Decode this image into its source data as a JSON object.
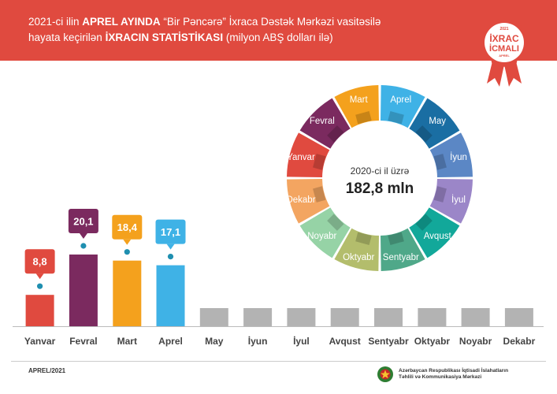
{
  "header": {
    "line1_pre": "2021-ci ilin ",
    "line1_bold": "APREL AYINDA",
    "line1_post": " “Bir Pəncərə” İxraca Dəstək Mərkəzi vasitəsilə",
    "line2_pre": "hayata keçirilən ",
    "line2_bold": "İXRACIN STATİSTİKASI",
    "line2_post": " (milyon ABŞ dolları ilə)"
  },
  "badge": {
    "year_top": "2021",
    "line1": "İXRAC",
    "line2": "İCMALI",
    "month": "APREL"
  },
  "chart_data": [
    {
      "type": "bar",
      "categories": [
        "Yanvar",
        "Fevral",
        "Mart",
        "Aprel",
        "May",
        "İyun",
        "İyul",
        "Avqust",
        "Sentyabr",
        "Oktyabr",
        "Noyabr",
        "Dekabr"
      ],
      "values": [
        8.8,
        20.1,
        18.4,
        17.1,
        null,
        null,
        null,
        null,
        null,
        null,
        null,
        null
      ],
      "labels": [
        "8,8",
        "20,1",
        "18,4",
        "17,1"
      ],
      "colors": [
        "#e04a3f",
        "#7b2a5f",
        "#f4a11d",
        "#3fb2e6",
        "#b3b3b3",
        "#b3b3b3",
        "#b3b3b3",
        "#b3b3b3",
        "#b3b3b3",
        "#b3b3b3",
        "#b3b3b3",
        "#b3b3b3"
      ]
    },
    {
      "type": "pie",
      "center_text": "2020-ci il üzrə",
      "total_label": "182,8 mln",
      "segments": [
        "Aprel",
        "May",
        "İyun",
        "İyul",
        "Avqust",
        "Sentyabr",
        "Oktyabr",
        "Noyabr",
        "Dekabr",
        "Yanvar",
        "Fevral",
        "Mart"
      ],
      "colors": [
        "#3fb2e6",
        "#1a6ea3",
        "#5b87c5",
        "#9b86c8",
        "#12a89a",
        "#4fa889",
        "#b3bd6c",
        "#96d3a6",
        "#f3a561",
        "#e04a3f",
        "#7b2a5f",
        "#f4a11d"
      ]
    }
  ],
  "footer": {
    "date": "APREL/2021",
    "org_line1": "Azərbaycan Respublikası İqtisadi İslahatların",
    "org_line2": "Təhlili və Kommunikasiya Mərkəzi"
  }
}
